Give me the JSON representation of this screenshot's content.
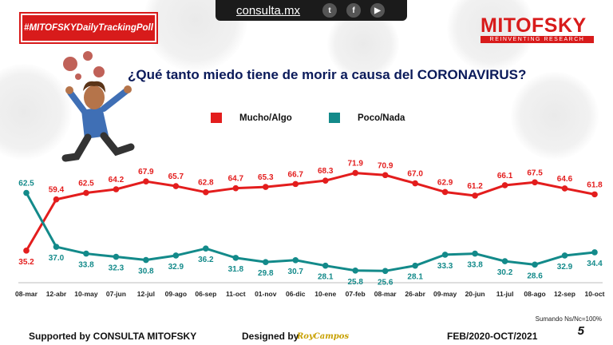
{
  "topbar": {
    "site": "consulta.mx",
    "icons": [
      "twitter-icon",
      "facebook-icon",
      "youtube-icon"
    ]
  },
  "hashtag": "#MITOFSKYDailyTrackingPoll",
  "logo": {
    "main": "MITOFSKY",
    "sub": "REINVENTING RESEARCH"
  },
  "note": "Sumando Ns/Nc=100%",
  "page_number": "5",
  "footer": {
    "supported": "Supported by   CONSULTA   MITOFSKY",
    "designed": "Designed by",
    "designer": "RoyCampos",
    "period": "FEB/2020-OCT/2021"
  },
  "colors": {
    "series1": "#e31d1d",
    "series2": "#138a8a",
    "brand": "#d81b1b"
  },
  "chart_data": {
    "type": "line",
    "title": "¿Qué tanto miedo tiene de morir a causa del CORONAVIRUS?",
    "categories": [
      "08-mar",
      "12-abr",
      "10-may",
      "07-jun",
      "12-jul",
      "09-ago",
      "06-sep",
      "11-oct",
      "01-nov",
      "06-dic",
      "10-ene",
      "07-feb",
      "08-mar",
      "26-abr",
      "09-may",
      "20-jun",
      "11-jul",
      "08-ago",
      "12-sep",
      "10-oct"
    ],
    "series": [
      {
        "name": "Mucho/Algo",
        "color": "#e31d1d",
        "values": [
          35.2,
          59.4,
          62.5,
          64.2,
          67.9,
          65.7,
          62.8,
          64.7,
          65.3,
          66.7,
          68.3,
          71.9,
          70.9,
          67.0,
          62.9,
          61.2,
          66.1,
          67.5,
          64.6,
          61.8
        ],
        "labels": [
          "35.2",
          "59.4",
          "62.5",
          "64.2",
          "67.9",
          "65.7",
          "62.8",
          "64.7",
          "65.3",
          "66.7",
          "68.3",
          "71.9",
          "70.9",
          "67.0",
          "62.9",
          "61.2",
          "66.1",
          "67.5",
          "64.6",
          "61.8"
        ]
      },
      {
        "name": "Poco/Nada",
        "color": "#138a8a",
        "values": [
          62.5,
          37.0,
          33.8,
          32.3,
          30.8,
          32.9,
          36.2,
          31.8,
          29.8,
          30.7,
          28.1,
          25.8,
          25.6,
          28.1,
          33.3,
          33.8,
          30.2,
          28.6,
          32.9,
          34.4
        ],
        "labels": [
          "62.5",
          "37.0",
          "33.8",
          "32.3",
          "30.8",
          "32.9",
          "36.2",
          "31.8",
          "29.8",
          "30.7",
          "28.1",
          "25.8",
          "25.6",
          "28.1",
          "33.3",
          "33.8",
          "30.2",
          "28.6",
          "32.9",
          "34.4"
        ]
      }
    ],
    "legend": "top-center",
    "grid": false
  }
}
